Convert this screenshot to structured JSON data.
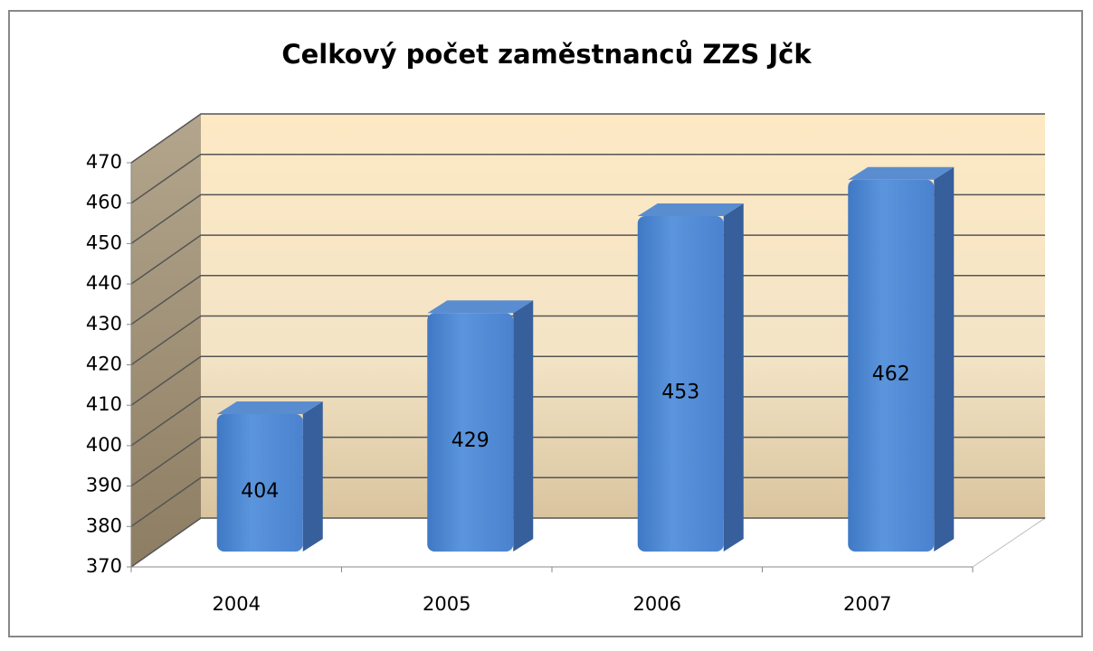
{
  "chart_data": {
    "type": "bar",
    "title": "Celkový počet zaměstnanců ZZS Jčk",
    "categories": [
      "2004",
      "2005",
      "2006",
      "2007"
    ],
    "values": [
      404,
      429,
      453,
      462
    ],
    "color": "#4f8bd6",
    "ylim": [
      370,
      470
    ],
    "yticks": [
      370,
      380,
      390,
      400,
      410,
      420,
      430,
      440,
      450,
      460,
      470
    ],
    "grid": true
  }
}
